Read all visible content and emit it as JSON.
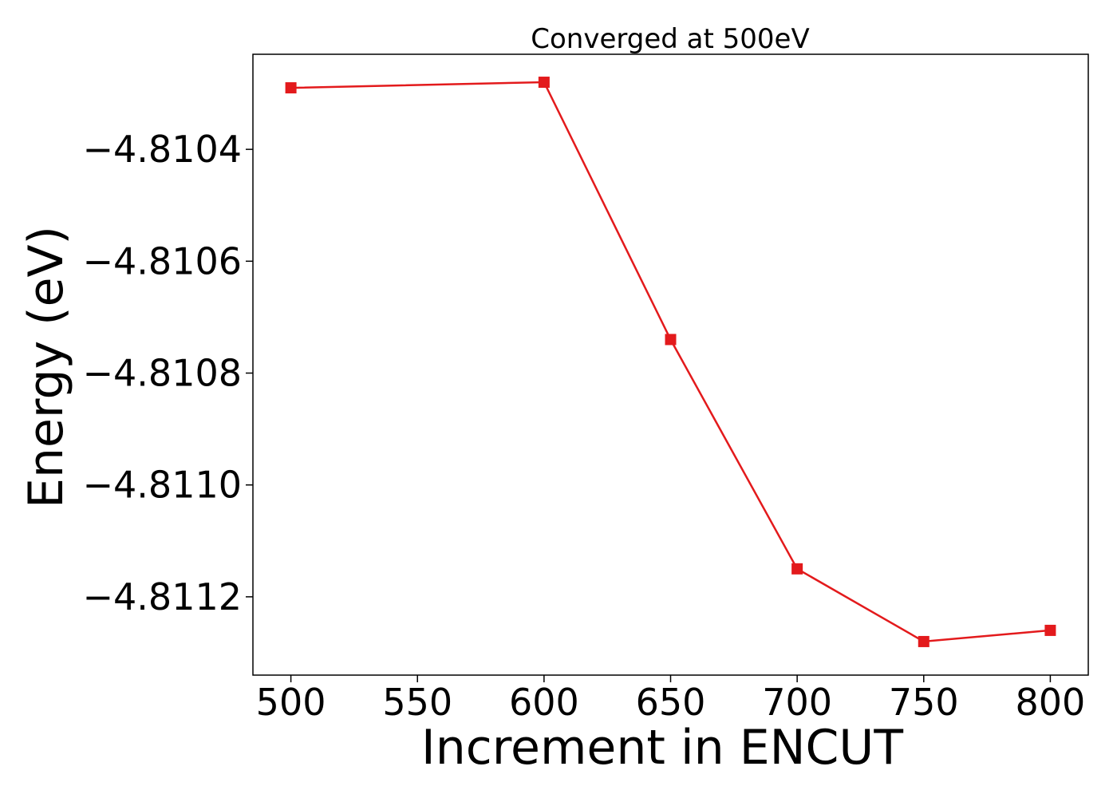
{
  "chart_data": {
    "type": "line",
    "title": "Converged at 500eV",
    "xlabel": "Increment in ENCUT",
    "ylabel": "Energy (eV)",
    "xlim": [
      485,
      815
    ],
    "ylim": [
      -4.81134,
      -4.81023
    ],
    "xticks": [
      500,
      550,
      600,
      650,
      700,
      750,
      800
    ],
    "yticks": [
      -4.8104,
      -4.8106,
      -4.8108,
      -4.811,
      -4.8112
    ],
    "ytick_labels": [
      "−4.8104",
      "−4.8106",
      "−4.8108",
      "−4.8110",
      "−4.8112"
    ],
    "grid": false,
    "color": "#e31a1c",
    "marker": "square",
    "series": [
      {
        "x": [
          500,
          600,
          650,
          700,
          750,
          800
        ],
        "values": [
          -4.81029,
          -4.81028,
          -4.81074,
          -4.81115,
          -4.81128,
          -4.81126
        ]
      }
    ]
  }
}
